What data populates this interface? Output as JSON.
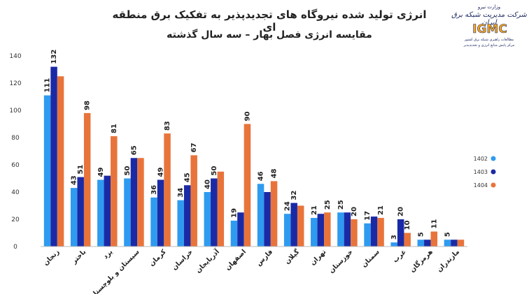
{
  "title": {
    "line1": "انرژی تولید شده نیروگاه های تجدیدپذیر به تفکیک برق منطقه ای",
    "line2": "مقایسه انرژی فصل بهار – سه سال گذشته"
  },
  "logo": {
    "ministry": "وزارت نیرو",
    "company_script": "شرکت مدیریت شبکه برق ایران",
    "acronym": "IGMC",
    "tagline_1": "مطالعات راهبری شبکه برق کشور",
    "tagline_2": "مرکز پایش منابع انرژی و تجدیدپذیر"
  },
  "chart_data": {
    "type": "bar",
    "categories": [
      "زنجان",
      "باختر",
      "یزد",
      "سیستان و بلوچستان",
      "کرمان",
      "خراسان",
      "آذربایجان",
      "اصفهان",
      "فارس",
      "گیلان",
      "تهران",
      "خوزستان",
      "سمنان",
      "غرب",
      "هرمزگان",
      "مازندران"
    ],
    "series": [
      {
        "name": "1402",
        "color": "#2e9bf0",
        "values": [
          111,
          43,
          49,
          50,
          36,
          34,
          40,
          19,
          46,
          24,
          21,
          25,
          17,
          3,
          5,
          5
        ]
      },
      {
        "name": "1403",
        "color": "#1a2aa6",
        "values": [
          132,
          51,
          52,
          65,
          49,
          45,
          50,
          25,
          40,
          32,
          24,
          25,
          22,
          20,
          5,
          5
        ]
      },
      {
        "name": "1404",
        "color": "#e8743b",
        "values": [
          125,
          98,
          81,
          65,
          83,
          67,
          55,
          90,
          48,
          30,
          25,
          20,
          21,
          10,
          11,
          5
        ]
      }
    ],
    "data_labels": [
      [
        "111",
        "43",
        "49",
        "50",
        "36",
        "34",
        "40",
        "19",
        "46",
        "24",
        "21",
        "25",
        "17",
        "3",
        "5",
        "5"
      ],
      [
        "132",
        "51",
        "",
        "65",
        "49",
        "45",
        "50",
        "",
        "",
        "32",
        "",
        "",
        "",
        "20",
        "",
        ""
      ],
      [
        "",
        "98",
        "81",
        "",
        "83",
        "67",
        "",
        "90",
        "48",
        "",
        "25",
        "20",
        "21",
        "10",
        "11",
        ""
      ]
    ],
    "ylim": [
      0,
      140
    ],
    "yticks": [
      "0",
      "20",
      "40",
      "60",
      "80",
      "100",
      "120",
      "140"
    ],
    "grid": false,
    "legend_position": "right"
  }
}
